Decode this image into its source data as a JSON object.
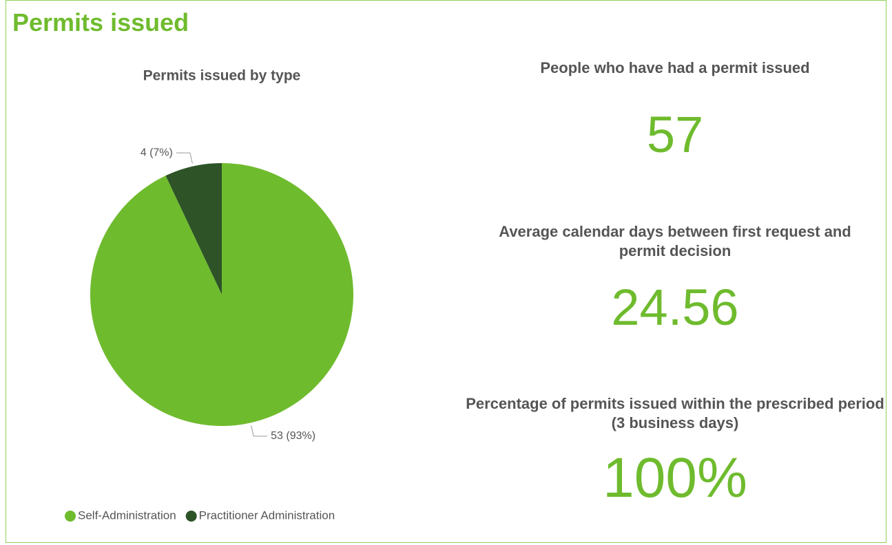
{
  "title": "Permits issued",
  "chart_data": {
    "type": "pie",
    "title": "Permits issued by type",
    "categories": [
      "Self-Administration",
      "Practitioner Administration"
    ],
    "values": [
      53,
      4
    ],
    "value_labels": [
      "53 (93%)",
      "4 (7%)"
    ],
    "colors": [
      "#6fbb2e",
      "#2d5327"
    ],
    "legend": "bottom-left"
  },
  "kpis": [
    {
      "label": "People who have had a permit issued",
      "value": "57"
    },
    {
      "label": "Average calendar days between first request and permit decision",
      "value": "24.56"
    },
    {
      "label": "Percentage of permits issued within the prescribed period (3 business days)",
      "value": "100%"
    }
  ]
}
